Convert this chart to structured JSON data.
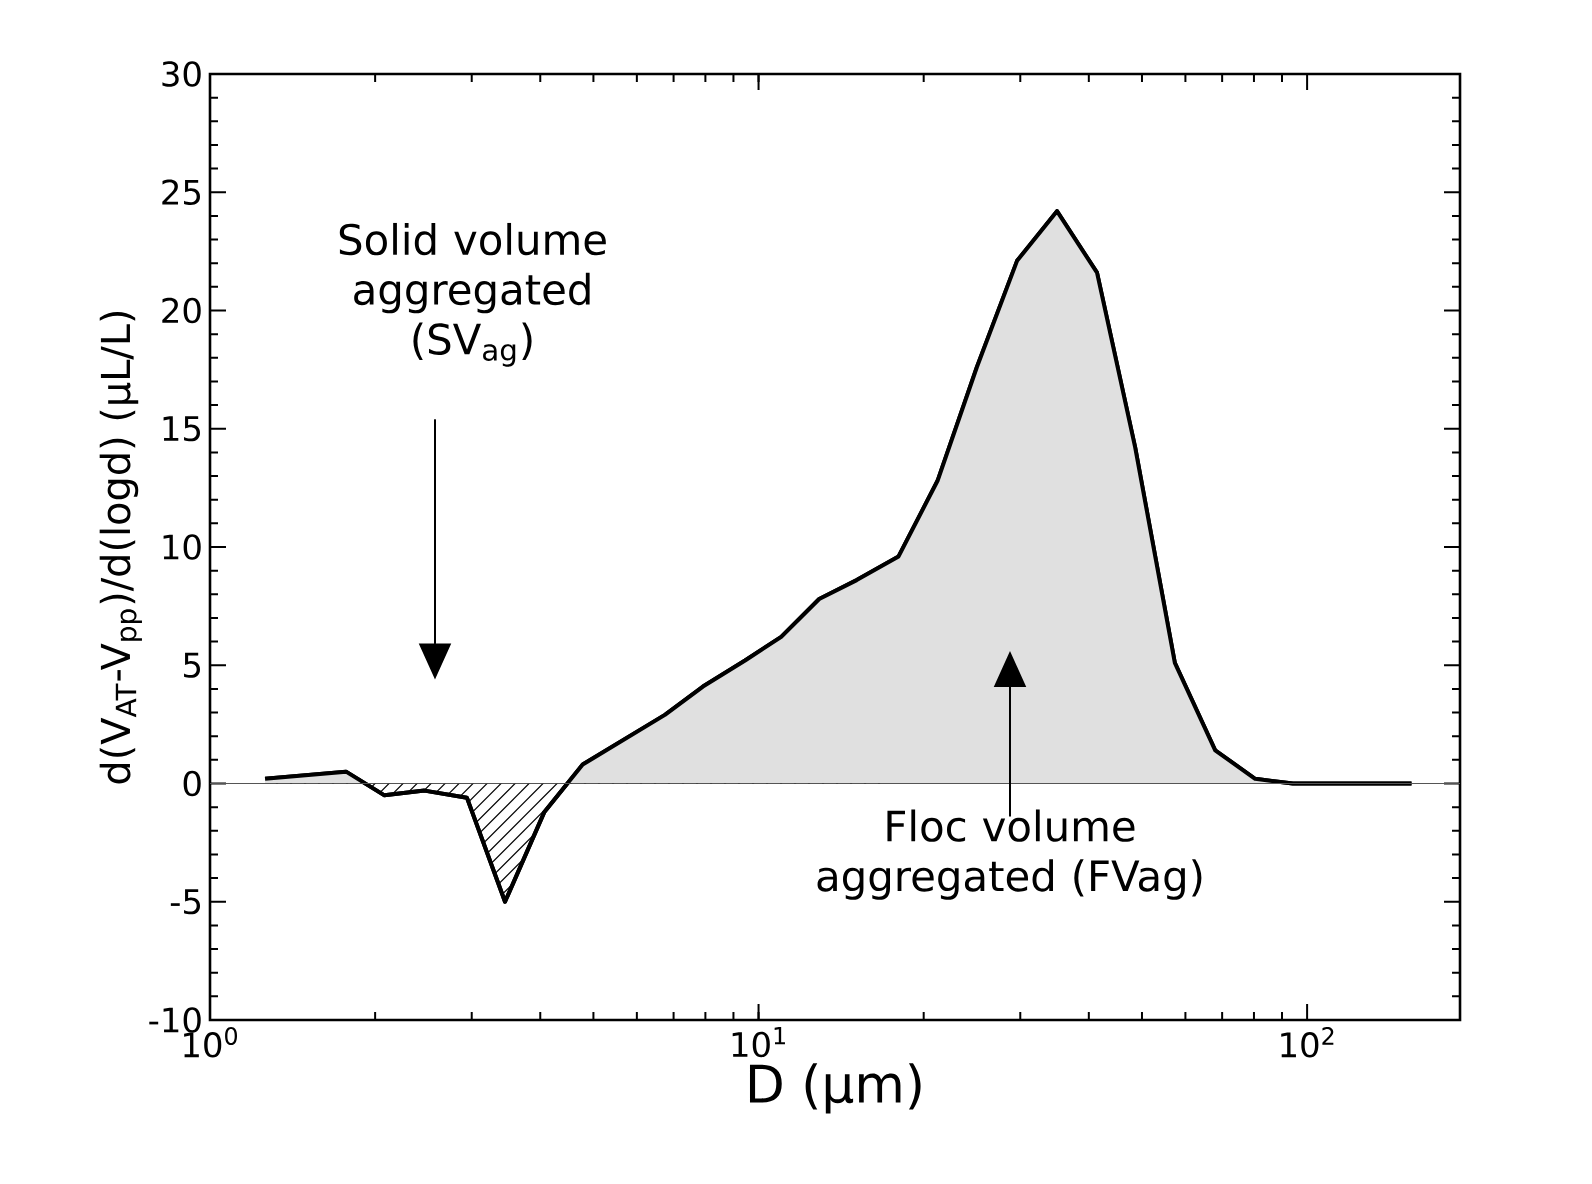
{
  "chart_data": {
    "type": "area",
    "xlabel": "D (μm)",
    "ylabel": "d(V$_{AT}$-V$_{pp}$)/d(logd) (μL/L)",
    "log": "x",
    "xlim": [
      1,
      190
    ],
    "ylim": [
      -10,
      30
    ],
    "xticks": [
      {
        "value": 1,
        "label": "10$^{0}$"
      },
      {
        "value": 10,
        "label": "10$^{1}$"
      },
      {
        "value": 100,
        "label": "10$^{2}$"
      }
    ],
    "yticks": [
      -10,
      -5,
      0,
      5,
      10,
      15,
      20,
      25,
      30
    ],
    "ref_lines": [
      {
        "axis": "y",
        "value": 0,
        "color": "#555555"
      }
    ],
    "annotations": [
      "Solid volume aggregated (SV$_{ag}$)",
      "Floc volume aggregated (FVag)"
    ],
    "x": [
      1.26,
      1.77,
      2.08,
      2.46,
      2.94,
      3.45,
      4.07,
      4.78,
      6.75,
      7.92,
      9.45,
      11.0,
      12.9,
      15.1,
      18.0,
      21.2,
      25.0,
      29.6,
      35.0,
      41.4,
      48.6,
      57.4,
      68.0,
      80.4,
      94.2,
      110,
      155
    ],
    "series": [
      {
        "color": "#e0e0e0",
        "values": [
          0.2,
          0.5,
          -0.5,
          -0.3,
          -0.6,
          -5.0,
          -1.2,
          0.8,
          2.9,
          4.1,
          5.2,
          6.2,
          7.8,
          8.6,
          9.6,
          12.8,
          17.6,
          22.1,
          24.2,
          21.6,
          14.2,
          5.1,
          1.4,
          0.2,
          0.0,
          0,
          0
        ]
      }
    ]
  }
}
